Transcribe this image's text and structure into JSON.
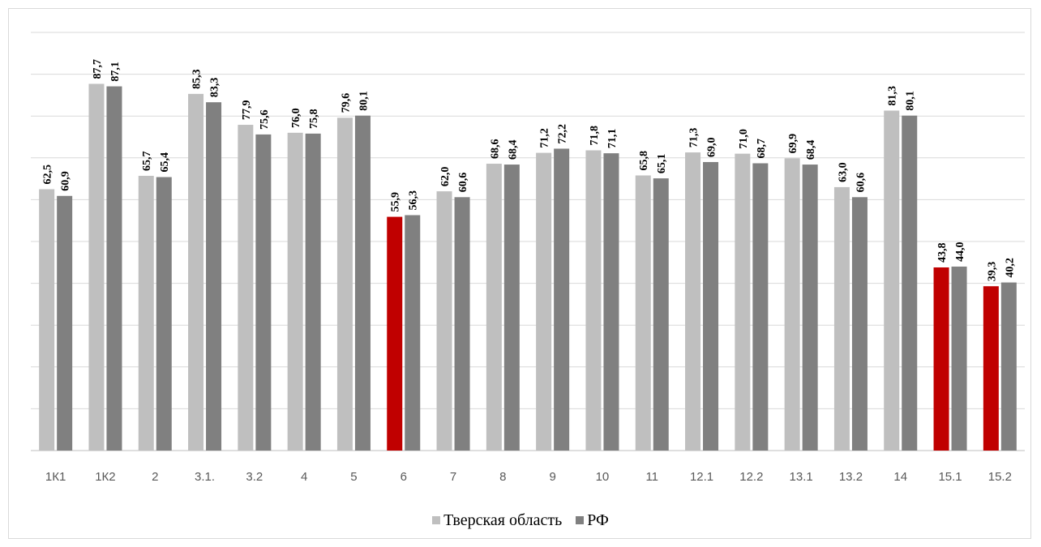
{
  "chart_data": {
    "type": "bar",
    "categories": [
      "1К1",
      "1К2",
      "2",
      "3.1.",
      "3.2",
      "4",
      "5",
      "6",
      "7",
      "8",
      "9",
      "10",
      "11",
      "12.1",
      "12.2",
      "13.1",
      "13.2",
      "14",
      "15.1",
      "15.2"
    ],
    "series": [
      {
        "name": "Тверская область",
        "values": [
          62.5,
          87.7,
          65.7,
          85.3,
          77.9,
          76.0,
          79.6,
          55.9,
          62.0,
          68.6,
          71.2,
          71.8,
          65.8,
          71.3,
          71.0,
          69.9,
          63.0,
          81.3,
          43.8,
          39.3
        ],
        "labels": [
          "62,5",
          "87,7",
          "65,7",
          "85,3",
          "77,9",
          "76,0",
          "79,6",
          "55,9",
          "62,0",
          "68,6",
          "71,2",
          "71,8",
          "65,8",
          "71,3",
          "71,0",
          "69,9",
          "63,0",
          "81,3",
          "43,8",
          "39,3"
        ],
        "color": "#bfbfbf",
        "highlight_color": "#c00000",
        "highlighted_categories": [
          "6",
          "15.1",
          "15.2"
        ]
      },
      {
        "name": "РФ",
        "values": [
          60.9,
          87.1,
          65.4,
          83.3,
          75.6,
          75.8,
          80.1,
          56.3,
          60.6,
          68.4,
          72.2,
          71.1,
          65.1,
          69.0,
          68.7,
          68.4,
          60.6,
          80.1,
          44.0,
          40.2
        ],
        "labels": [
          "60,9",
          "87,1",
          "65,4",
          "83,3",
          "75,6",
          "75,8",
          "80,1",
          "56,3",
          "60,6",
          "68,4",
          "72,2",
          "71,1",
          "65,1",
          "69,0",
          "68,7",
          "68,4",
          "60,6",
          "80,1",
          "44,0",
          "40,2"
        ],
        "color": "#808080"
      }
    ],
    "ylim": [
      0,
      100
    ],
    "grid": true,
    "legend_position": "bottom",
    "title": "",
    "xlabel": "",
    "ylabel": ""
  },
  "legend": {
    "items": [
      {
        "label": "Тверская область",
        "color": "#bfbfbf"
      },
      {
        "label": "РФ",
        "color": "#808080"
      }
    ]
  }
}
